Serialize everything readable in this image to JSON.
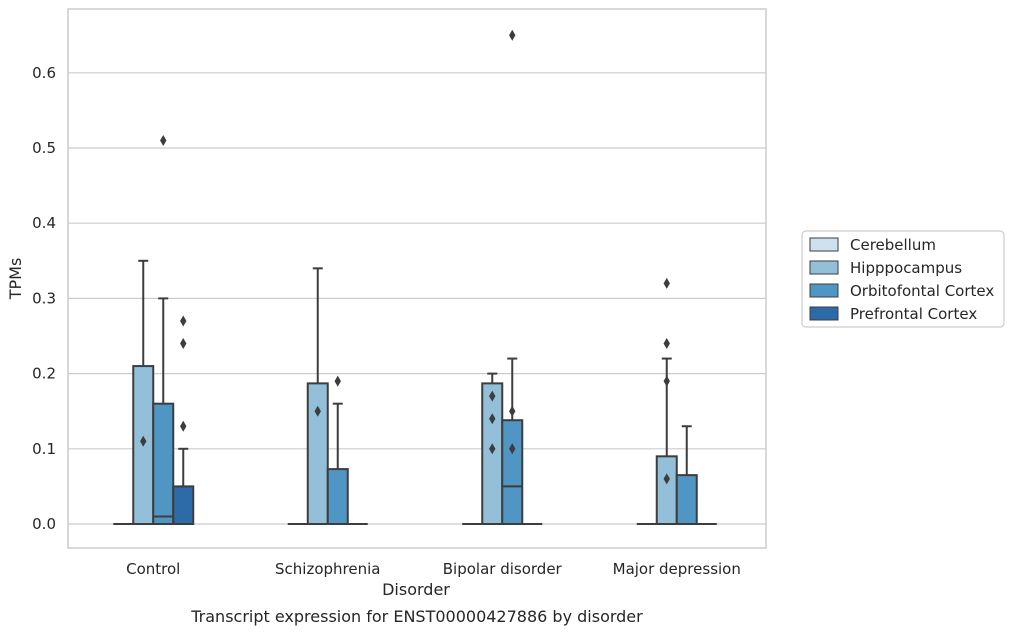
{
  "chart_data": {
    "type": "box",
    "title": "",
    "caption": "Transcript expression for ENST00000427886 by disorder",
    "xlabel": "Disorder",
    "ylabel": "TPMs",
    "ylim": [
      -0.032,
      0.685
    ],
    "yticks": [
      0.0,
      0.1,
      0.2,
      0.3,
      0.4,
      0.5,
      0.6
    ],
    "ytick_labels": [
      "0.0",
      "0.1",
      "0.2",
      "0.3",
      "0.4",
      "0.5",
      "0.6"
    ],
    "grid": "horizontal",
    "legend_position": "right",
    "categories": [
      "Control",
      "Schizophrenia",
      "Bipolar disorder",
      "Major depression"
    ],
    "series": [
      {
        "name": "Cerebellum",
        "color": "#cfe0ee",
        "boxes": [
          {
            "q1": 0,
            "median": 0,
            "q3": 0,
            "whisker_low": 0,
            "whisker_high": 0,
            "outliers": []
          },
          {
            "q1": 0,
            "median": 0,
            "q3": 0,
            "whisker_low": 0,
            "whisker_high": 0,
            "outliers": []
          },
          {
            "q1": 0,
            "median": 0,
            "q3": 0,
            "whisker_low": 0,
            "whisker_high": 0,
            "outliers": []
          },
          {
            "q1": 0,
            "median": 0,
            "q3": 0,
            "whisker_low": 0,
            "whisker_high": 0,
            "outliers": []
          }
        ]
      },
      {
        "name": "Hipppocampus",
        "color": "#94bfd9",
        "boxes": [
          {
            "q1": 0,
            "median": 0,
            "q3": 0.21,
            "whisker_low": 0,
            "whisker_high": 0.35,
            "outliers": [
              0.11
            ]
          },
          {
            "q1": 0,
            "median": 0,
            "q3": 0.187,
            "whisker_low": 0,
            "whisker_high": 0.34,
            "outliers": [
              0.15
            ]
          },
          {
            "q1": 0,
            "median": 0,
            "q3": 0.187,
            "whisker_low": 0,
            "whisker_high": 0.2,
            "outliers": [
              0.1,
              0.14,
              0.17
            ]
          },
          {
            "q1": 0,
            "median": 0,
            "q3": 0.09,
            "whisker_low": 0,
            "whisker_high": 0.22,
            "outliers": [
              0.06,
              0.19,
              0.24,
              0.32
            ]
          }
        ]
      },
      {
        "name": "Orbitofontal Cortex",
        "color": "#5096c5",
        "boxes": [
          {
            "q1": 0,
            "median": 0.01,
            "q3": 0.16,
            "whisker_low": 0,
            "whisker_high": 0.3,
            "outliers": [
              0.51
            ]
          },
          {
            "q1": 0,
            "median": 0,
            "q3": 0.073,
            "whisker_low": 0,
            "whisker_high": 0.16,
            "outliers": [
              0.19
            ]
          },
          {
            "q1": 0,
            "median": 0.05,
            "q3": 0.138,
            "whisker_low": 0,
            "whisker_high": 0.22,
            "outliers": [
              0.1,
              0.15,
              0.65
            ]
          },
          {
            "q1": 0,
            "median": 0,
            "q3": 0.065,
            "whisker_low": 0,
            "whisker_high": 0.13,
            "outliers": []
          }
        ]
      },
      {
        "name": "Prefrontal Cortex",
        "color": "#2c6aa8",
        "boxes": [
          {
            "q1": 0,
            "median": 0,
            "q3": 0.05,
            "whisker_low": 0,
            "whisker_high": 0.1,
            "outliers": [
              0.13,
              0.24,
              0.27
            ]
          },
          {
            "q1": 0,
            "median": 0,
            "q3": 0,
            "whisker_low": 0,
            "whisker_high": 0,
            "outliers": []
          },
          {
            "q1": 0,
            "median": 0,
            "q3": 0,
            "whisker_low": 0,
            "whisker_high": 0,
            "outliers": []
          },
          {
            "q1": 0,
            "median": 0,
            "q3": 0,
            "whisker_low": 0,
            "whisker_high": 0,
            "outliers": []
          }
        ]
      }
    ]
  }
}
